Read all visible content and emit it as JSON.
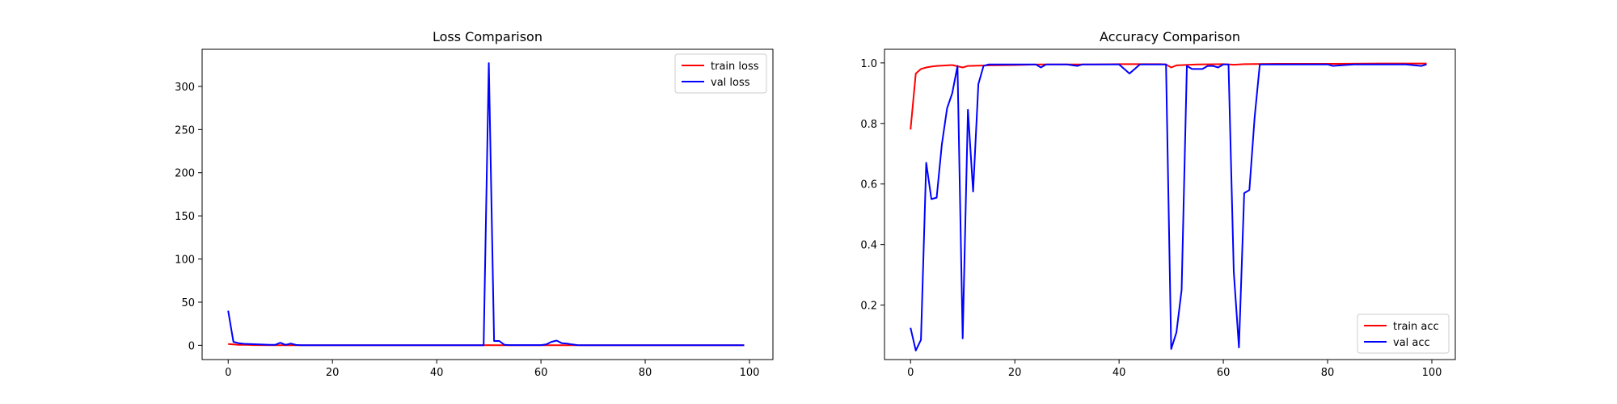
{
  "chart_data": [
    {
      "type": "line",
      "title": "Loss Comparison",
      "xlabel": "",
      "ylabel": "",
      "xlim": [
        -5,
        104.5
      ],
      "ylim": [
        -16.5,
        343
      ],
      "xticks": [
        0,
        20,
        40,
        60,
        80,
        100
      ],
      "yticks": [
        0,
        50,
        100,
        150,
        200,
        250,
        300
      ],
      "tick_labels_x": [
        "0",
        "20",
        "40",
        "60",
        "80",
        "100"
      ],
      "tick_labels_y": [
        "0",
        "50",
        "100",
        "150",
        "200",
        "250",
        "300"
      ],
      "grid": false,
      "legend_position": "upper right",
      "series": [
        {
          "name": "train loss",
          "color": "#ff0000",
          "x": [
            0,
            1,
            2,
            3,
            4,
            5,
            10,
            20,
            40,
            49,
            50,
            51,
            52,
            60,
            80,
            99
          ],
          "values": [
            1.5,
            1.0,
            0.6,
            0.5,
            0.4,
            0.3,
            0.2,
            0.15,
            0.1,
            0.1,
            0.3,
            0.2,
            0.1,
            0.1,
            0.05,
            0.05
          ]
        },
        {
          "name": "val loss",
          "color": "#0000ff",
          "x": [
            0,
            1,
            2,
            3,
            4,
            5,
            6,
            7,
            8,
            9,
            10,
            11,
            12,
            13,
            14,
            15,
            20,
            30,
            40,
            48,
            49,
            50,
            51,
            52,
            53,
            54,
            55,
            60,
            61,
            62,
            63,
            64,
            65,
            66,
            67,
            68,
            70,
            80,
            90,
            99
          ],
          "values": [
            40,
            4,
            2.5,
            1.8,
            1.5,
            1.3,
            1,
            0.8,
            0.6,
            0.5,
            3,
            0.5,
            2,
            0.4,
            0.2,
            0.2,
            0.2,
            0.2,
            0.2,
            0.2,
            0.2,
            327,
            5,
            5,
            0.5,
            0.3,
            0.3,
            0.3,
            1,
            4,
            5.5,
            2.5,
            2,
            1,
            0.3,
            0.2,
            0.2,
            0.1,
            0.1,
            0.1
          ]
        }
      ]
    },
    {
      "type": "line",
      "title": "Accuracy Comparison",
      "xlabel": "",
      "ylabel": "",
      "xlim": [
        -5,
        104.5
      ],
      "ylim": [
        0.02,
        1.045
      ],
      "xticks": [
        0,
        20,
        40,
        60,
        80,
        100
      ],
      "yticks": [
        0.2,
        0.4,
        0.6,
        0.8,
        1.0
      ],
      "tick_labels_x": [
        "0",
        "20",
        "40",
        "60",
        "80",
        "100"
      ],
      "tick_labels_y": [
        "0.2",
        "0.4",
        "0.6",
        "0.8",
        "1.0"
      ],
      "grid": false,
      "legend_position": "lower right",
      "series": [
        {
          "name": "train acc",
          "color": "#ff0000",
          "x": [
            0,
            1,
            2,
            3,
            4,
            5,
            6,
            8,
            10,
            11,
            15,
            20,
            25,
            30,
            35,
            40,
            48,
            49,
            50,
            51,
            55,
            60,
            62,
            64,
            70,
            80,
            90,
            99
          ],
          "values": [
            0.78,
            0.965,
            0.98,
            0.985,
            0.988,
            0.99,
            0.991,
            0.993,
            0.985,
            0.99,
            0.992,
            0.993,
            0.995,
            0.995,
            0.995,
            0.996,
            0.996,
            0.995,
            0.985,
            0.992,
            0.995,
            0.996,
            0.994,
            0.996,
            0.997,
            0.997,
            0.998,
            0.998
          ]
        },
        {
          "name": "val acc",
          "color": "#0000ff",
          "x": [
            0,
            1,
            2,
            3,
            4,
            5,
            6,
            7,
            8,
            9,
            10,
            11,
            12,
            13,
            14,
            15,
            20,
            24,
            25,
            26,
            30,
            32,
            33,
            40,
            41,
            42,
            43,
            44,
            45,
            49,
            50,
            51,
            52,
            53,
            54,
            55,
            56,
            57,
            58,
            59,
            60,
            61,
            62,
            63,
            64,
            65,
            66,
            67,
            68,
            70,
            80,
            81,
            85,
            90,
            95,
            98,
            99
          ],
          "values": [
            0.125,
            0.05,
            0.085,
            0.67,
            0.55,
            0.555,
            0.73,
            0.85,
            0.9,
            0.99,
            0.09,
            0.845,
            0.575,
            0.93,
            0.99,
            0.995,
            0.995,
            0.995,
            0.985,
            0.995,
            0.995,
            0.99,
            0.995,
            0.995,
            0.98,
            0.965,
            0.98,
            0.995,
            0.995,
            0.995,
            0.055,
            0.11,
            0.25,
            0.99,
            0.98,
            0.98,
            0.98,
            0.99,
            0.99,
            0.985,
            0.995,
            0.995,
            0.31,
            0.06,
            0.57,
            0.58,
            0.82,
            0.995,
            0.995,
            0.995,
            0.995,
            0.99,
            0.995,
            0.995,
            0.995,
            0.99,
            0.995
          ]
        }
      ]
    }
  ]
}
